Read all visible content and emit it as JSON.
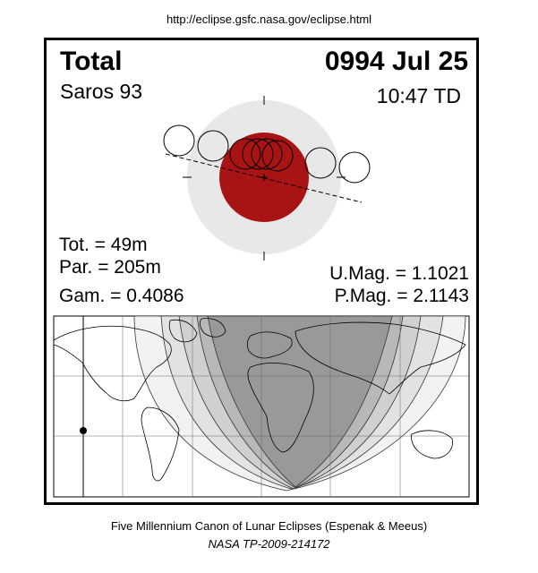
{
  "header": {
    "url": "http://eclipse.gsfc.nasa.gov/eclipse.html"
  },
  "eclipse": {
    "type": "Total",
    "date": "0994 Jul 25",
    "saros": "Saros  93",
    "time": "10:47 TD",
    "totality": "Tot. =  49m",
    "partial": "Par. = 205m",
    "gamma": "Gam. = 0.4086",
    "umbral_mag": "U.Mag. = 1.1021",
    "penumbral_mag": "P.Mag. = 2.1143"
  },
  "colors": {
    "penumbra": "#e8e8e8",
    "umbra": "#a81414",
    "map_background": "#ffffff",
    "map_dark": "#999999",
    "map_mid": "#b8b8b8",
    "map_light": "#d4d4d4",
    "map_lighter": "#e8e8e8"
  },
  "footer": {
    "line1": "Five Millennium Canon of Lunar Eclipses (Espenak & Meeus)",
    "line2": "NASA TP-2009-214172"
  }
}
